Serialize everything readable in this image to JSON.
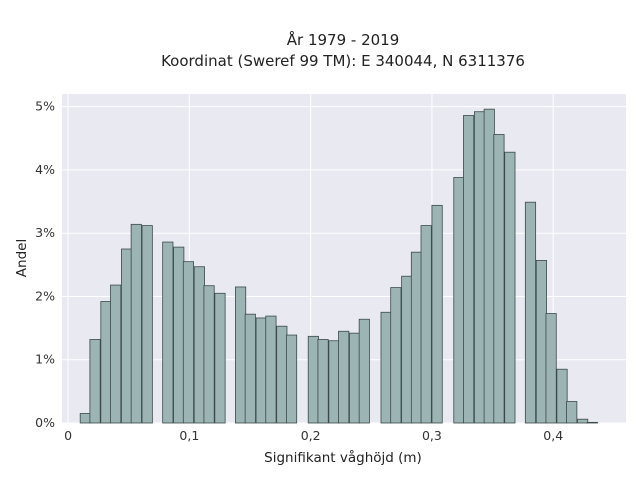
{
  "chart_data": {
    "type": "bar",
    "title": "År 1979 - 2019",
    "subtitle": "Koordinat (Sweref 99 TM): E 340044, N 6311376",
    "xlabel": "Signifikant våghöjd (m)",
    "ylabel": "Andel",
    "xlim": [
      -0.005,
      0.46
    ],
    "ylim": [
      0,
      5.2
    ],
    "x_ticks": [
      0,
      0.1,
      0.2,
      0.3,
      0.4
    ],
    "x_tick_labels": [
      "0",
      "0,1",
      "0,2",
      "0,3",
      "0,4"
    ],
    "y_ticks": [
      0,
      1,
      2,
      3,
      4,
      5
    ],
    "y_tick_labels": [
      "0%",
      "1%",
      "2%",
      "3%",
      "4%",
      "5%"
    ],
    "bin_width": 0.0085,
    "bin_starts": [
      0.01,
      0.018,
      0.027,
      0.035,
      0.044,
      0.052,
      0.061,
      0.078,
      0.087,
      0.095,
      0.104,
      0.112,
      0.121,
      0.138,
      0.146,
      0.155,
      0.163,
      0.172,
      0.18,
      0.198,
      0.206,
      0.215,
      0.223,
      0.232,
      0.24,
      0.258,
      0.266,
      0.275,
      0.283,
      0.291,
      0.3,
      0.318,
      0.326,
      0.335,
      0.343,
      0.351,
      0.36,
      0.377,
      0.386,
      0.394,
      0.403,
      0.411,
      0.42,
      0.428
    ],
    "values": [
      0.15,
      1.32,
      1.92,
      2.18,
      2.75,
      3.14,
      3.12,
      2.86,
      2.78,
      2.55,
      2.47,
      2.17,
      2.05,
      2.15,
      1.72,
      1.66,
      1.69,
      1.53,
      1.39,
      1.37,
      1.32,
      1.3,
      1.45,
      1.42,
      1.64,
      1.75,
      2.14,
      2.32,
      2.7,
      3.12,
      3.44,
      3.88,
      4.86,
      4.92,
      4.96,
      4.56,
      4.28,
      3.49,
      2.57,
      1.73,
      0.85,
      0.34,
      0.06,
      0.01
    ],
    "grid": true,
    "bar_color": "#9cb4b4",
    "bar_edge_color": "#3a4a4a",
    "plot_background": "#e9e9f1"
  }
}
